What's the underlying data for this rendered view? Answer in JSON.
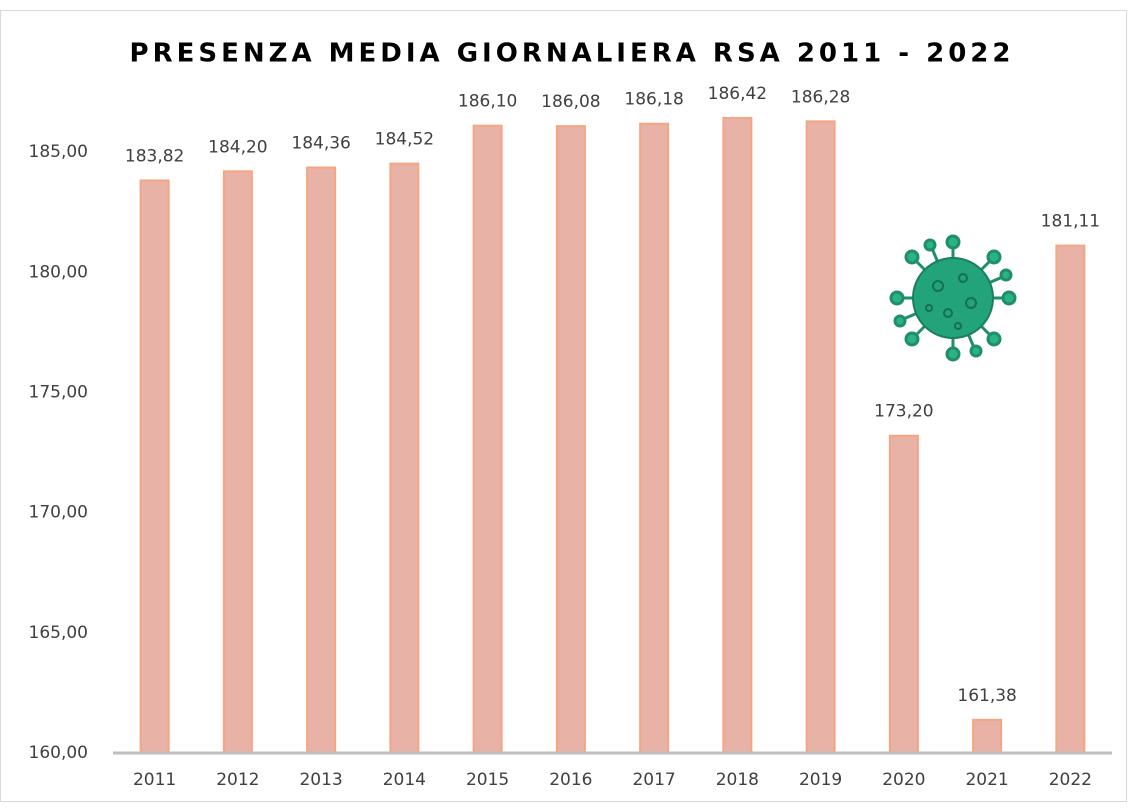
{
  "chart_data": {
    "type": "bar",
    "title": "PRESENZA MEDIA GIORNALIERA RSA 2011 - 2022",
    "categories": [
      "2011",
      "2012",
      "2013",
      "2014",
      "2015",
      "2016",
      "2017",
      "2018",
      "2019",
      "2020",
      "2021",
      "2022"
    ],
    "values": [
      183.82,
      184.2,
      184.36,
      184.52,
      186.1,
      186.08,
      186.18,
      186.42,
      186.28,
      173.2,
      161.38,
      181.11
    ],
    "value_labels": [
      "183,82",
      "184,20",
      "184,36",
      "184,52",
      "186,10",
      "186,08",
      "186,18",
      "186,42",
      "186,28",
      "173,20",
      "161,38",
      "181,11"
    ],
    "color": "#e8b3a6",
    "ylim": [
      160,
      188
    ],
    "yticks": [
      {
        "value": 160,
        "label": "160,00"
      },
      {
        "value": 165,
        "label": "165,00"
      },
      {
        "value": 170,
        "label": "170,00"
      },
      {
        "value": 175,
        "label": "175,00"
      },
      {
        "value": 180,
        "label": "180,00"
      },
      {
        "value": 185,
        "label": "185,00"
      }
    ],
    "grid": false
  }
}
